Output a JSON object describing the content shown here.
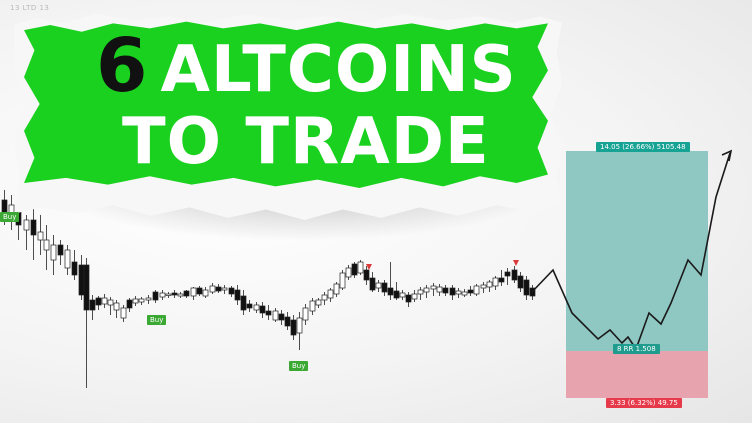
{
  "header": {
    "label": "13 LTD 13"
  },
  "headline": {
    "number": "6",
    "word1": "ALTCOINS",
    "line2": "TO TRADE"
  },
  "position": {
    "target_label": "14.05 (26.66%) 5105.48",
    "entry_label": "8 RR 1.508",
    "stop_label": "3.33 (6.32%) 49.75",
    "target_color": "#8fc7c3",
    "stop_color": "#e8a4ae"
  },
  "signals": {
    "buy_labels": [
      "Buy",
      "Buy",
      "Buy"
    ],
    "buy_color": "#3aa832",
    "sell_marker_color": "#d93b3b"
  },
  "colors": {
    "banner_green": "#19d11e",
    "projection_line": "#1a1a1a"
  }
}
